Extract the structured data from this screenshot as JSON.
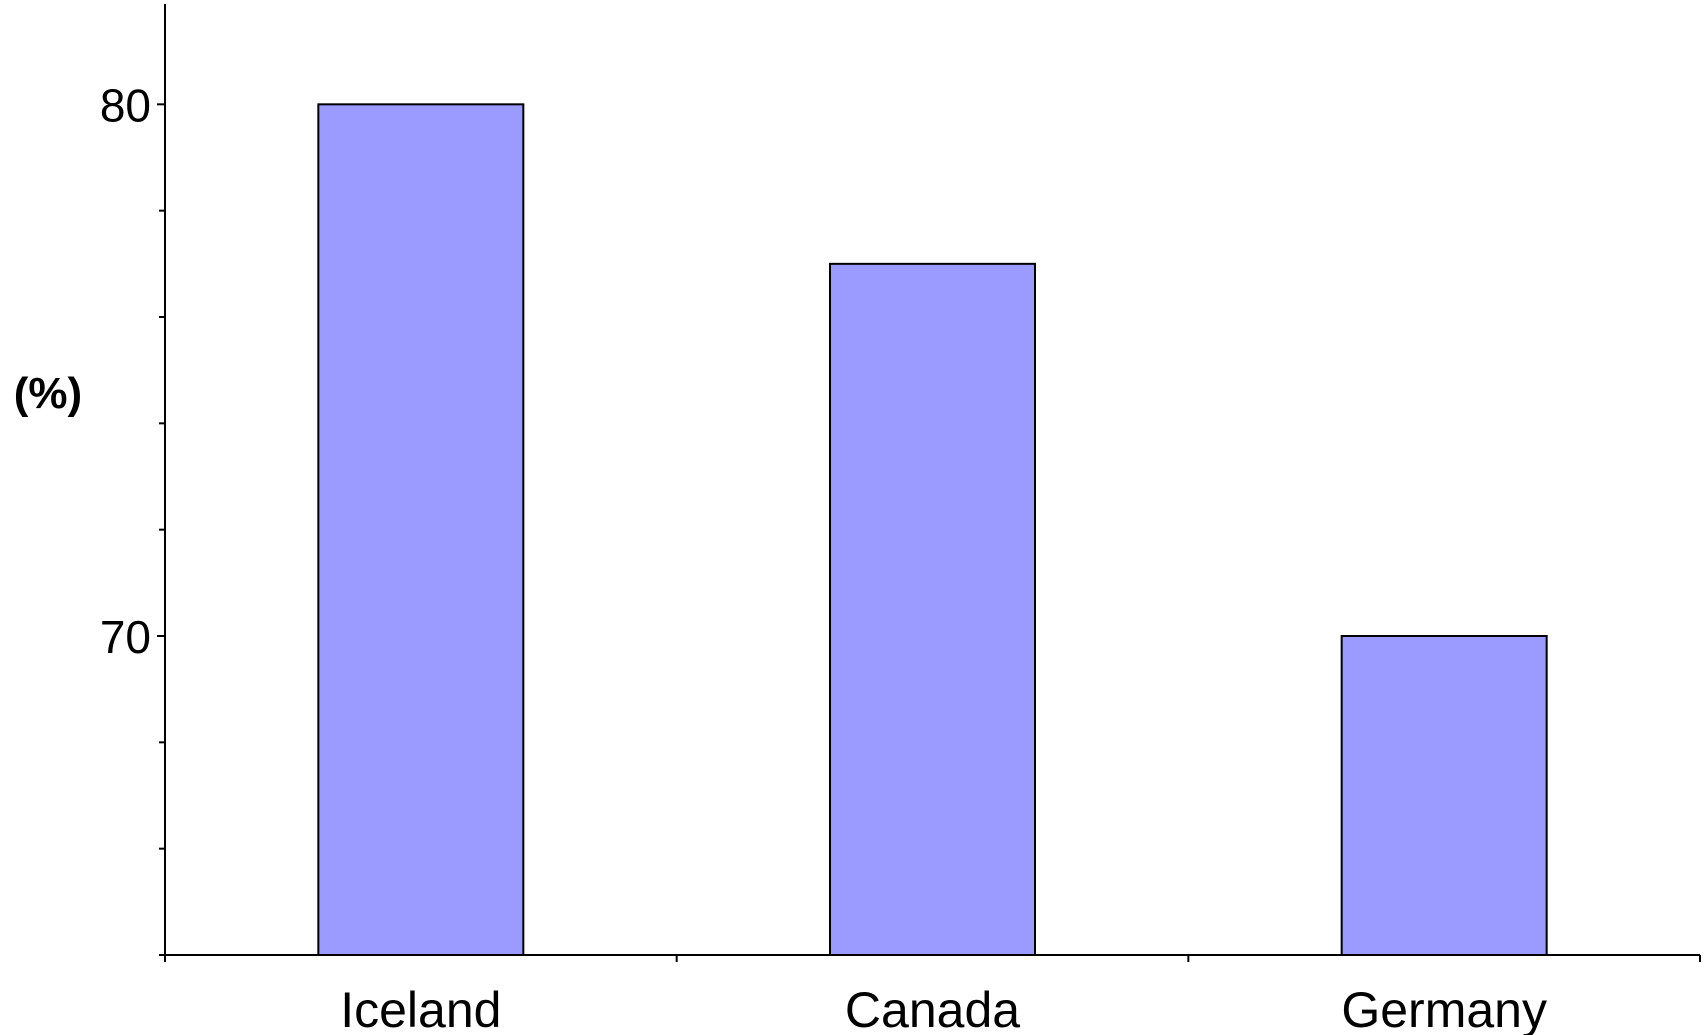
{
  "chart_data": {
    "type": "bar",
    "title": "",
    "xlabel": "",
    "ylabel": "(%)",
    "categories": [
      "Iceland",
      "Canada",
      "Germany"
    ],
    "values": [
      80.0,
      77.0,
      70.0
    ],
    "ylim": [
      64,
      82
    ],
    "yticks_labeled": [
      {
        "value": 70,
        "label": "70"
      },
      {
        "value": 80,
        "label": "80"
      }
    ],
    "yticks_minor": [
      64,
      66,
      68,
      72,
      74,
      76,
      78,
      82
    ],
    "grid": false,
    "legend": "none",
    "colors": {
      "bar_fill": "#9a9aff",
      "bar_stroke": "#000000",
      "axis": "#000000"
    }
  }
}
